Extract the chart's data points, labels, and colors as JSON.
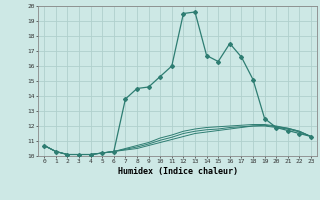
{
  "xlabel": "Humidex (Indice chaleur)",
  "ylabel": "",
  "background_color": "#cde8e5",
  "grid_color": "#b0d0cc",
  "line_color": "#2e7d72",
  "marker_color": "#2e7d72",
  "xlim": [
    -0.5,
    23.5
  ],
  "ylim": [
    10,
    20
  ],
  "xticks": [
    0,
    1,
    2,
    3,
    4,
    5,
    6,
    7,
    8,
    9,
    10,
    11,
    12,
    13,
    14,
    15,
    16,
    17,
    18,
    19,
    20,
    21,
    22,
    23
  ],
  "yticks": [
    10,
    11,
    12,
    13,
    14,
    15,
    16,
    17,
    18,
    19,
    20
  ],
  "series": [
    [
      10.7,
      10.3,
      10.1,
      10.1,
      10.1,
      10.2,
      10.3,
      13.8,
      14.5,
      14.6,
      15.3,
      16.0,
      19.5,
      19.6,
      16.7,
      16.3,
      17.5,
      16.6,
      15.1,
      12.5,
      11.9,
      11.7,
      11.5,
      11.3
    ],
    [
      10.7,
      10.3,
      10.1,
      10.1,
      10.1,
      10.2,
      10.3,
      10.4,
      10.5,
      10.7,
      10.9,
      11.1,
      11.3,
      11.5,
      11.6,
      11.7,
      11.8,
      11.9,
      12.0,
      12.0,
      11.9,
      11.8,
      11.6,
      11.3
    ],
    [
      10.7,
      10.3,
      10.1,
      10.1,
      10.1,
      10.2,
      10.3,
      10.45,
      10.6,
      10.8,
      11.05,
      11.25,
      11.5,
      11.65,
      11.75,
      11.8,
      11.9,
      11.95,
      12.0,
      12.05,
      11.95,
      11.85,
      11.65,
      11.3
    ],
    [
      10.7,
      10.3,
      10.1,
      10.1,
      10.1,
      10.2,
      10.3,
      10.5,
      10.7,
      10.9,
      11.2,
      11.4,
      11.65,
      11.8,
      11.9,
      11.95,
      12.0,
      12.05,
      12.1,
      12.1,
      12.0,
      11.85,
      11.65,
      11.3
    ]
  ]
}
